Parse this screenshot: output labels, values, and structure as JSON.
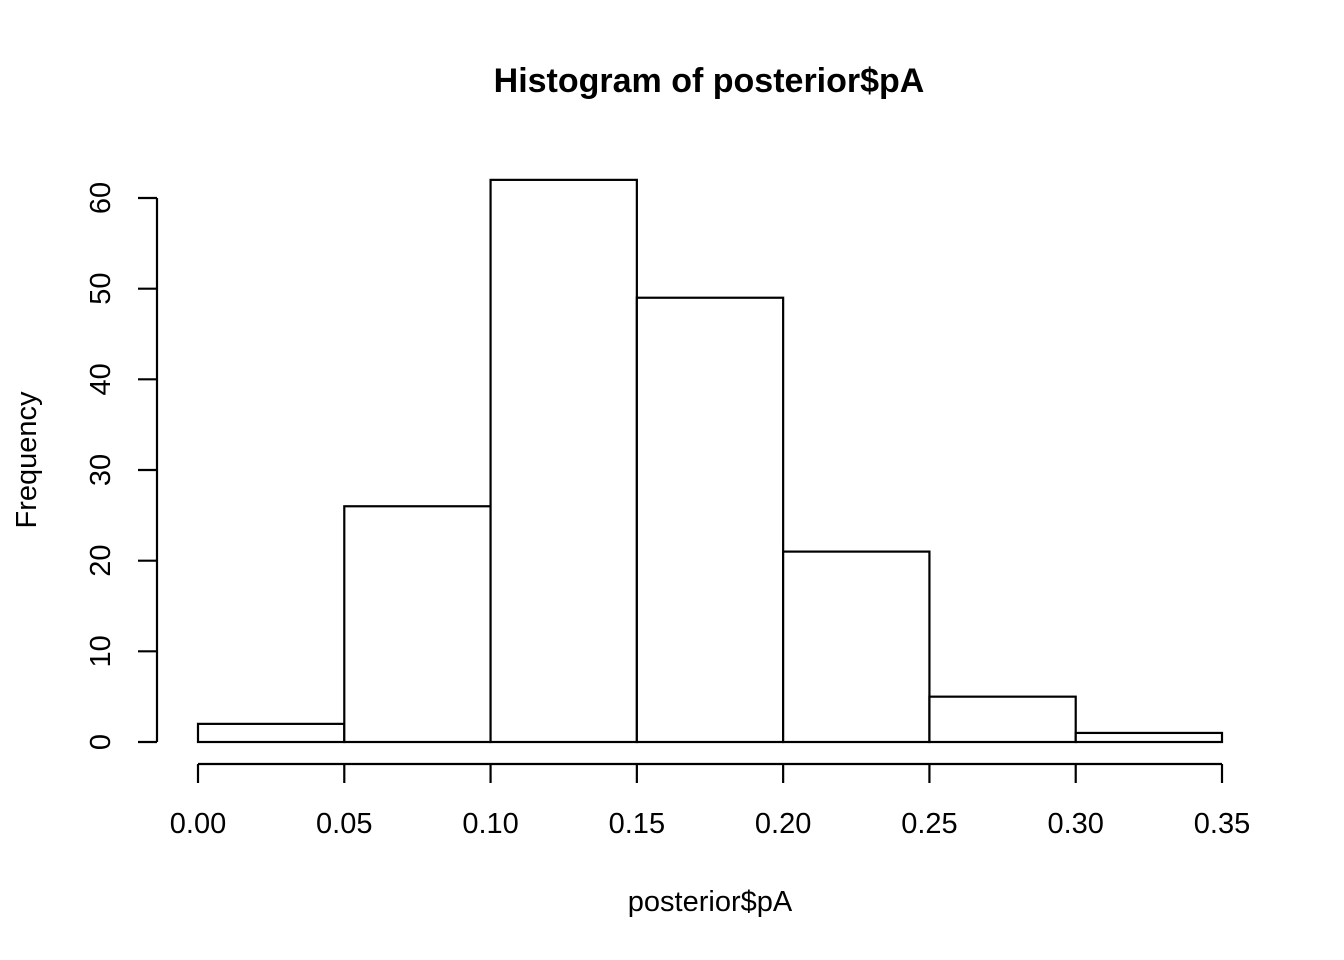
{
  "chart_data": {
    "type": "bar",
    "title": "Histogram of posterior$pA",
    "xlabel": "posterior$pA",
    "ylabel": "Frequency",
    "bins": [
      {
        "start": 0.0,
        "end": 0.05,
        "count": 2
      },
      {
        "start": 0.05,
        "end": 0.1,
        "count": 26
      },
      {
        "start": 0.1,
        "end": 0.15,
        "count": 62
      },
      {
        "start": 0.15,
        "end": 0.2,
        "count": 49
      },
      {
        "start": 0.2,
        "end": 0.25,
        "count": 21
      },
      {
        "start": 0.25,
        "end": 0.3,
        "count": 5
      },
      {
        "start": 0.3,
        "end": 0.35,
        "count": 1
      }
    ],
    "xlim": [
      0.0,
      0.35
    ],
    "ylim": [
      0,
      60
    ],
    "x_ticks": [
      "0.00",
      "0.05",
      "0.10",
      "0.15",
      "0.20",
      "0.25",
      "0.30",
      "0.35"
    ],
    "y_ticks": [
      "0",
      "10",
      "20",
      "30",
      "40",
      "50",
      "60"
    ],
    "grid": false,
    "colors": {
      "bar_fill": "#ffffff",
      "bar_stroke": "#000000"
    }
  }
}
